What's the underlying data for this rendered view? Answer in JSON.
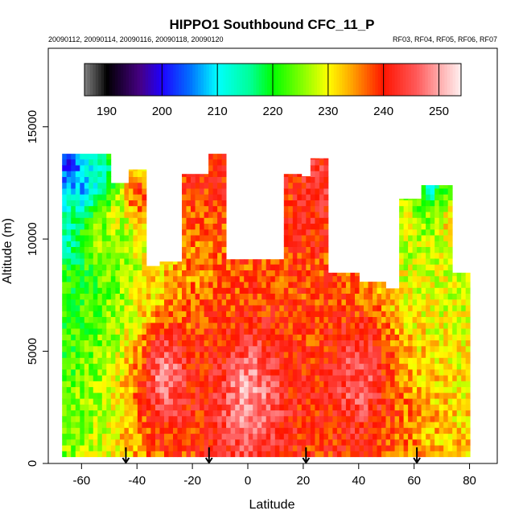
{
  "chart_data": {
    "type": "heatmap",
    "title": "HIPPO1 Southbound CFC_11_P",
    "subtitle_left": "20090112, 20090114, 20090116, 20090118, 20090120",
    "subtitle_right": "RF03, RF04, RF05, RF06, RF07",
    "xlabel": "Latitude",
    "ylabel": "Altitude (m)",
    "xlim": [
      -72,
      90
    ],
    "ylim": [
      0,
      18500
    ],
    "x_ticks": [
      -60,
      -40,
      -20,
      0,
      20,
      40,
      60,
      80
    ],
    "y_ticks": [
      0,
      5000,
      10000,
      15000
    ],
    "colorbar": {
      "ticks": [
        190,
        200,
        210,
        220,
        230,
        240,
        250
      ],
      "range": [
        186,
        254
      ],
      "location": "top-inside"
    },
    "profile_markers_lat": [
      -44,
      -14,
      21,
      61
    ],
    "coverage": [
      {
        "lat0": -67,
        "lat1": -50,
        "alt_top": 13800
      },
      {
        "lat0": -50,
        "lat1": -43,
        "alt_top": 12500
      },
      {
        "lat0": -43,
        "lat1": -37,
        "alt_top": 13100
      },
      {
        "lat0": -37,
        "lat1": -32,
        "alt_top": 8800
      },
      {
        "lat0": -32,
        "lat1": -23,
        "alt_top": 9000
      },
      {
        "lat0": -23,
        "lat1": -14,
        "alt_top": 12900
      },
      {
        "lat0": -14,
        "lat1": -8,
        "alt_top": 13800
      },
      {
        "lat0": -8,
        "lat1": 13,
        "alt_top": 9100
      },
      {
        "lat0": 13,
        "lat1": 19,
        "alt_top": 12900
      },
      {
        "lat0": 19,
        "lat1": 22,
        "alt_top": 12800
      },
      {
        "lat0": 22,
        "lat1": 29,
        "alt_top": 13600
      },
      {
        "lat0": 29,
        "lat1": 40,
        "alt_top": 8500
      },
      {
        "lat0": 40,
        "lat1": 50,
        "alt_top": 8100
      },
      {
        "lat0": 50,
        "lat1": 54,
        "alt_top": 7800
      },
      {
        "lat0": 54,
        "lat1": 62,
        "alt_top": 11800
      },
      {
        "lat0": 62,
        "lat1": 74,
        "alt_top": 12400
      },
      {
        "lat0": 74,
        "lat1": 80,
        "alt_top": 8500
      }
    ],
    "field_samples": [
      {
        "lat": -64,
        "alt": 13000,
        "value": 200
      },
      {
        "lat": -60,
        "alt": 12500,
        "value": 205
      },
      {
        "lat": -55,
        "alt": 12800,
        "value": 212
      },
      {
        "lat": -65,
        "alt": 10000,
        "value": 212
      },
      {
        "lat": -60,
        "alt": 10500,
        "value": 220
      },
      {
        "lat": -55,
        "alt": 10000,
        "value": 228
      },
      {
        "lat": -65,
        "alt": 8500,
        "value": 222
      },
      {
        "lat": -48,
        "alt": 11000,
        "value": 228
      },
      {
        "lat": -40,
        "alt": 12000,
        "value": 240
      },
      {
        "lat": -18,
        "alt": 12500,
        "value": 240
      },
      {
        "lat": -12,
        "alt": 13200,
        "value": 241
      },
      {
        "lat": 15,
        "alt": 12000,
        "value": 240
      },
      {
        "lat": 25,
        "alt": 12500,
        "value": 244
      },
      {
        "lat": 58,
        "alt": 11000,
        "value": 228
      },
      {
        "lat": 66,
        "alt": 12200,
        "value": 212
      },
      {
        "lat": 68,
        "alt": 11000,
        "value": 228
      },
      {
        "lat": 72,
        "alt": 10500,
        "value": 232
      },
      {
        "lat": -30,
        "alt": 4000,
        "value": 248
      },
      {
        "lat": 0,
        "alt": 3000,
        "value": 250
      },
      {
        "lat": 40,
        "alt": 4000,
        "value": 246
      }
    ]
  },
  "colors": {
    "background": "#ffffff",
    "axis": "#000000"
  }
}
